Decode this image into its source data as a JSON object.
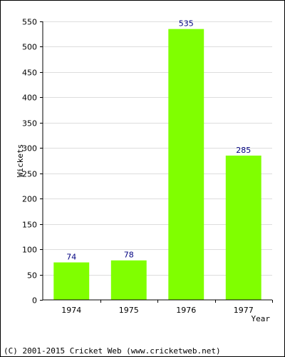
{
  "chart_data": {
    "type": "bar",
    "categories": [
      "1974",
      "1975",
      "1976",
      "1977"
    ],
    "values": [
      74,
      78,
      535,
      285
    ],
    "data_labels": [
      "74",
      "78",
      "535",
      "285"
    ],
    "xlabel": "Year",
    "ylabel": "Wickets",
    "ylim": [
      0,
      550
    ],
    "yticks": [
      0,
      50,
      100,
      150,
      200,
      250,
      300,
      350,
      400,
      450,
      500,
      550
    ],
    "grid": true,
    "bar_color": "#80ff00",
    "label_color": "#000080"
  },
  "footer": "(C) 2001-2015 Cricket Web (www.cricketweb.net)"
}
